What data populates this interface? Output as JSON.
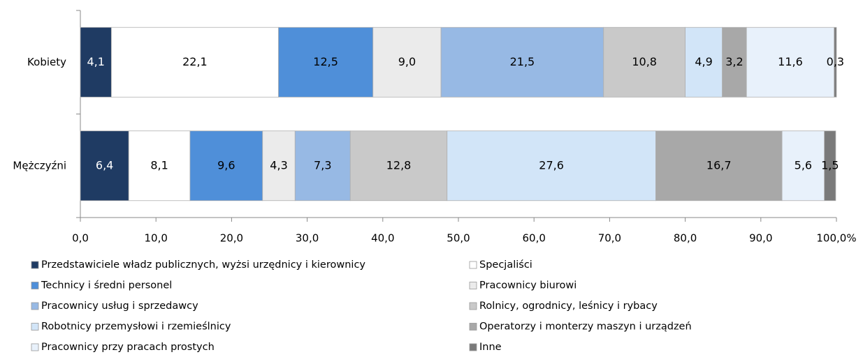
{
  "chart_data": {
    "type": "stacked-bar-horizontal",
    "categories": [
      "Kobiety",
      "Mężczyźni"
    ],
    "series": [
      {
        "name": "Przedstawiciele władz publicznych,  wyżsi urzędnicy i kierownicy",
        "color": "#1f3b63",
        "values": [
          4.1,
          6.4
        ],
        "value_labels": [
          "4,1",
          "6,4"
        ]
      },
      {
        "name": "Specjaliści",
        "color": "#ffffff",
        "values": [
          22.1,
          8.1
        ],
        "value_labels": [
          "22,1",
          "8,1"
        ]
      },
      {
        "name": "Technicy i średni personel",
        "color": "#4f8fd9",
        "values": [
          12.5,
          9.6
        ],
        "value_labels": [
          "12,5",
          "9,6"
        ]
      },
      {
        "name": "Pracownicy biurowi",
        "color": "#ebebeb",
        "values": [
          9.0,
          4.3
        ],
        "value_labels": [
          "9,0",
          "4,3"
        ]
      },
      {
        "name": "Pracownicy usług i sprzedawcy",
        "color": "#97b9e4",
        "values": [
          21.5,
          7.3
        ],
        "value_labels": [
          "21,5",
          "7,3"
        ]
      },
      {
        "name": "Rolnicy, ogrodnicy, leśnicy  i rybacy",
        "color": "#c9c9c9",
        "values": [
          10.8,
          12.8
        ],
        "value_labels": [
          "10,8",
          "12,8"
        ]
      },
      {
        "name": "Robotnicy  przemysłowi i rzemieślnicy",
        "color": "#d2e5f8",
        "values": [
          4.9,
          27.6
        ],
        "value_labels": [
          "4,9",
          "27,6"
        ]
      },
      {
        "name": "Operatorzy i monterzy maszyn i urządzeń",
        "color": "#a8a8a8",
        "values": [
          3.2,
          16.7
        ],
        "value_labels": [
          "3,2",
          "16,7"
        ]
      },
      {
        "name": "Pracownicy przy pracach prostych",
        "color": "#e8f1fb",
        "values": [
          11.6,
          5.6
        ],
        "value_labels": [
          "11,6",
          "5,6"
        ]
      },
      {
        "name": "Inne",
        "color": "#7a7a7a",
        "values": [
          0.3,
          1.5
        ],
        "value_labels": [
          "0,3",
          "1,5"
        ]
      }
    ],
    "xlim": [
      0,
      100
    ],
    "xticks": [
      {
        "value": 0,
        "label": "0,0"
      },
      {
        "value": 10,
        "label": "10,0"
      },
      {
        "value": 20,
        "label": "20,0"
      },
      {
        "value": 30,
        "label": "30,0"
      },
      {
        "value": 40,
        "label": "40,0"
      },
      {
        "value": 50,
        "label": "50,0"
      },
      {
        "value": 60,
        "label": "60,0"
      },
      {
        "value": 70,
        "label": "70,0"
      },
      {
        "value": 80,
        "label": "80,0"
      },
      {
        "value": 90,
        "label": "90,0"
      },
      {
        "value": 100,
        "label": "100,0%"
      }
    ],
    "legend": "bottom"
  }
}
